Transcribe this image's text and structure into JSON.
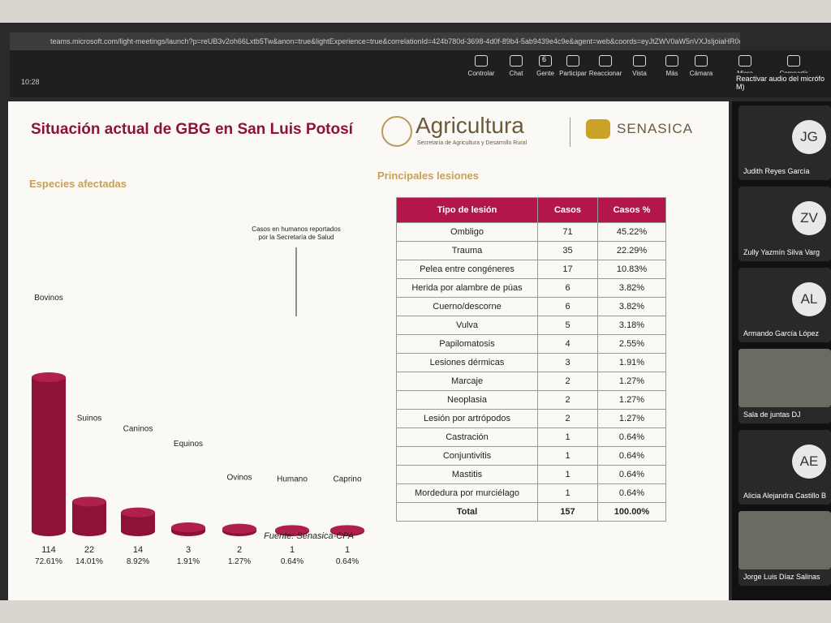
{
  "browser": {
    "url": "teams.microsoft.com/light-meetings/launch?p=reUB3v2oh66Lxtb5Tw&anon=true&lightExperience=true&correlationId=424b780d-3698-4d0f-89b4-5ab9439e4c9e&agent=web&coords=eyJtZWV0aW5nVXJsIjoiaHR0cHM6Ly90ZWFt..."
  },
  "toolbar": {
    "time": "10:28",
    "buttons": [
      "Controlar",
      "Chat",
      "Gente",
      "Participar",
      "Reaccionar",
      "Vista",
      "Más",
      "Cámara",
      "Micro",
      "Compartir"
    ],
    "people_count": "6",
    "tooltip": "Reactivar audio del micrófo M)"
  },
  "slide": {
    "title": "Situación actual de GBG en San Luis Potosí",
    "logo": "Agricultura",
    "logo_subtitle": "Secretaría de Agricultura y Desarrollo Rural",
    "logo2": "SENASICA",
    "left_heading": "Especies afectadas",
    "right_heading": "Principales lesiones",
    "annotation": "Casos en humanos reportados por la Secretaría de Salud",
    "source": "Fuente: Senasica-CPA"
  },
  "chart_data": {
    "type": "bar",
    "categories": [
      "Bovinos",
      "Suinos",
      "Caninos",
      "Equinos",
      "Ovinos",
      "Humano",
      "Caprino"
    ],
    "values": [
      114,
      22,
      14,
      3,
      2,
      1,
      1
    ],
    "percentages": [
      "72.61%",
      "14.01%",
      "8.92%",
      "1.91%",
      "1.27%",
      "0.64%",
      "0.64%"
    ],
    "color": "#8e1238"
  },
  "table": {
    "header": [
      "Tipo de lesión",
      "Casos",
      "Casos %"
    ],
    "rows": [
      [
        "Ombligo",
        "71",
        "45.22%"
      ],
      [
        "Trauma",
        "35",
        "22.29%"
      ],
      [
        "Pelea entre congéneres",
        "17",
        "10.83%"
      ],
      [
        "Herida por alambre de púas",
        "6",
        "3.82%"
      ],
      [
        "Cuerno/descorne",
        "6",
        "3.82%"
      ],
      [
        "Vulva",
        "5",
        "3.18%"
      ],
      [
        "Papilomatosis",
        "4",
        "2.55%"
      ],
      [
        "Lesiones dérmicas",
        "3",
        "1.91%"
      ],
      [
        "Marcaje",
        "2",
        "1.27%"
      ],
      [
        "Neoplasia",
        "2",
        "1.27%"
      ],
      [
        "Lesión por artrópodos",
        "2",
        "1.27%"
      ],
      [
        "Castración",
        "1",
        "0.64%"
      ],
      [
        "Conjuntivitis",
        "1",
        "0.64%"
      ],
      [
        "Mastitis",
        "1",
        "0.64%"
      ],
      [
        "Mordedura por murciélago",
        "1",
        "0.64%"
      ],
      [
        "Total",
        "157",
        "100.00%"
      ]
    ]
  },
  "participants": [
    {
      "initials": "JG",
      "name": "Judith Reyes García"
    },
    {
      "initials": "ZV",
      "name": "Zully Yazmín Silva Varg"
    },
    {
      "initials": "AL",
      "name": "Armando García López"
    },
    {
      "name": "Sala de juntas DJ"
    },
    {
      "initials": "AE",
      "name": "Alicia Alejandra Castillo B"
    },
    {
      "name": "Jorge Luis Díaz Salinas"
    }
  ]
}
